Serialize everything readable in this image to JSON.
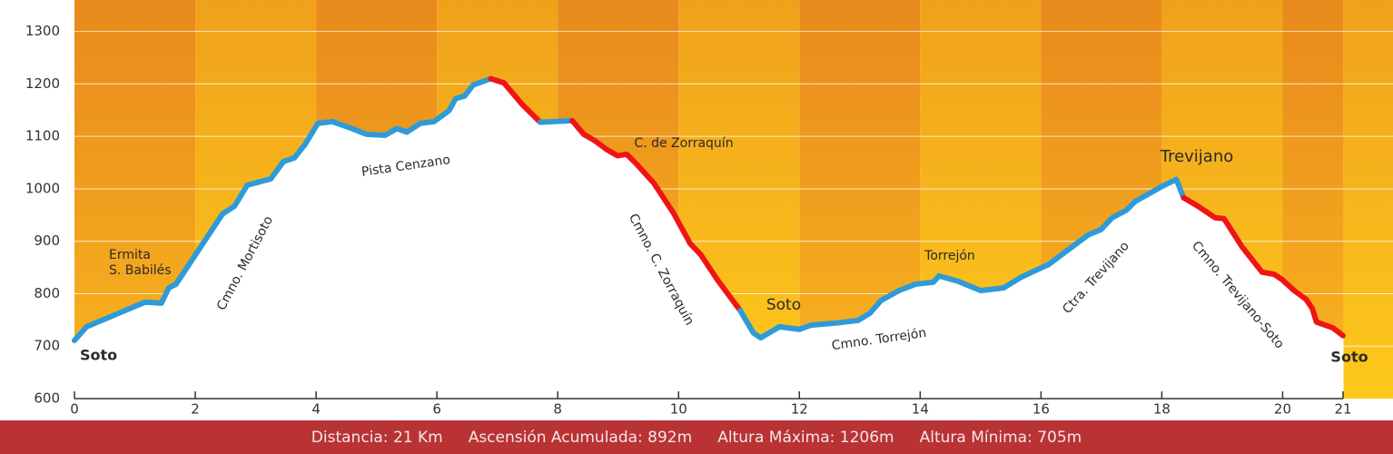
{
  "chart_data": {
    "type": "area-line",
    "xlim": [
      0,
      21
    ],
    "xticks": [
      0,
      2,
      4,
      6,
      8,
      10,
      12,
      14,
      16,
      18,
      20,
      21
    ],
    "ylim": [
      600,
      1360
    ],
    "yticks": [
      600,
      700,
      800,
      900,
      1000,
      1100,
      1200,
      1300
    ],
    "grid": true,
    "series": [
      {
        "color": "#2e9bd8",
        "x": [
          0,
          0.2,
          1.17,
          1.44,
          1.56,
          1.68,
          2.45,
          2.65,
          2.86,
          3.25,
          3.46,
          3.64,
          3.82,
          4.03,
          4.27,
          4.57,
          4.83,
          5.14,
          5.34,
          5.5,
          5.73,
          5.95,
          6.2,
          6.31,
          6.46,
          6.6,
          6.89
        ],
        "values": [
          711,
          737,
          784,
          782,
          811,
          818,
          952,
          967,
          1007,
          1019,
          1052,
          1059,
          1085,
          1125,
          1128,
          1116,
          1104,
          1102,
          1115,
          1108,
          1125,
          1128,
          1149,
          1172,
          1177,
          1198,
          1210
        ]
      },
      {
        "color": "#f01414",
        "x": [
          6.89,
          7.11,
          7.41,
          7.71
        ],
        "values": [
          1210,
          1202,
          1161,
          1127
        ]
      },
      {
        "color": "#2e9bd8",
        "x": [
          7.71,
          8.24
        ],
        "values": [
          1127,
          1130
        ]
      },
      {
        "color": "#f01414",
        "x": [
          8.24,
          8.43,
          8.61,
          8.81,
          8.99,
          9.14,
          9.29,
          9.59,
          9.92,
          10.19,
          10.37,
          10.64,
          11.02
        ],
        "values": [
          1130,
          1104,
          1092,
          1075,
          1063,
          1066,
          1049,
          1011,
          953,
          896,
          874,
          827,
          768
        ]
      },
      {
        "color": "#2e9bd8",
        "x": [
          11.02,
          11.24,
          11.36,
          11.67,
          12.0,
          12.19,
          12.6,
          12.97,
          13.17,
          13.35,
          13.65,
          13.92,
          14.22,
          14.31,
          14.62,
          15.0,
          15.38,
          15.68,
          16.13,
          16.51,
          16.78,
          16.99,
          17.18,
          17.41,
          17.56,
          18.01,
          18.24,
          18.36
        ],
        "values": [
          768,
          725,
          716,
          737,
          732,
          740,
          744,
          749,
          763,
          787,
          806,
          818,
          822,
          834,
          824,
          806,
          811,
          832,
          856,
          889,
          912,
          922,
          945,
          959,
          976,
          1005,
          1018,
          983
        ]
      },
      {
        "color": "#f01414",
        "x": [
          18.36,
          18.61,
          18.88,
          19.03,
          19.33,
          19.66,
          19.86,
          19.99,
          20.19,
          20.39,
          20.49,
          20.56,
          20.83,
          21.0
        ],
        "values": [
          983,
          966,
          945,
          943,
          889,
          841,
          837,
          827,
          806,
          789,
          772,
          746,
          735,
          720
        ]
      }
    ],
    "annotations": [
      "Soto",
      "Ermita",
      "S. Babilés",
      "Cmno. Mortisoto",
      "Pista Cenzano",
      "C. de Zorraquín",
      "Cmno. C. Zorraquín",
      "Soto",
      "Torrejón",
      "Cmno. Torrejón",
      "Ctra. Trevijano",
      "Trevijano",
      "Cmno. Trevijano-Soto",
      "Soto"
    ],
    "footer": [
      "Distancia: 21 Km",
      "Ascensión Acumulada: 892m",
      "Altura Máxima: 1206m",
      "Altura Mínima: 705m"
    ]
  }
}
